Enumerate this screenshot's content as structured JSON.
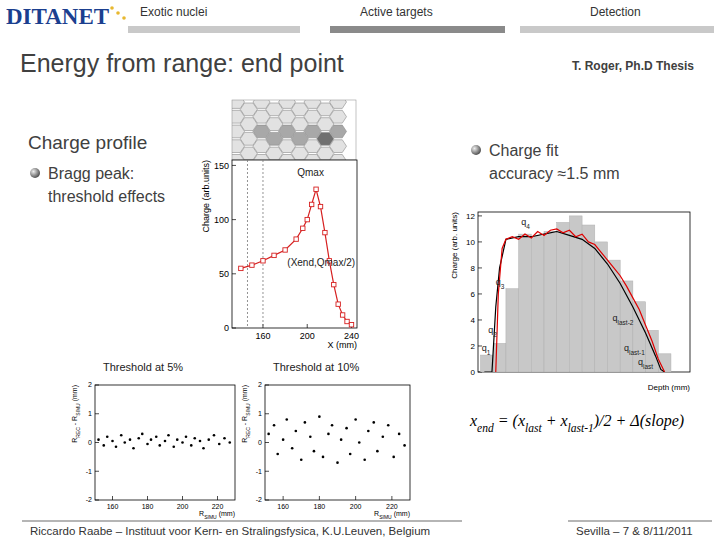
{
  "slide": {
    "logo": "DITANET",
    "nav": [
      "Exotic nuclei",
      "Active targets",
      "Detection"
    ],
    "title": "Energy from range: end point",
    "source": "T. Roger, Ph.D Thesis",
    "left_heading": "Charge profile",
    "left_bullet": [
      "Bragg peak:",
      "threshold effects"
    ],
    "right_bullet": [
      "Charge fit",
      "accuracy ≈1.5 mm"
    ],
    "formula": [
      {
        "text": "x"
      },
      {
        "text": "end",
        "sub": true
      },
      {
        "text": " = (x"
      },
      {
        "text": "last",
        "sub": true
      },
      {
        "text": " + x"
      },
      {
        "text": "last-1",
        "sub": true
      },
      {
        "text": ")/2 + Δ(slope)"
      }
    ],
    "footer_left": "Riccardo Raabe – Instituut voor Kern- en Stralingsfysica, K.U.Leuven, Belgium",
    "footer_right": "Sevilla – 7 & 8/11/2011"
  },
  "chart_data": [
    {
      "type": "line",
      "x": [
        140,
        150,
        160,
        170,
        180,
        190,
        196,
        200,
        204,
        208,
        212,
        216,
        220,
        224,
        228,
        232,
        236,
        240
      ],
      "values": [
        55,
        58,
        62,
        67,
        72,
        82,
        92,
        100,
        114,
        128,
        112,
        88,
        62,
        40,
        22,
        12,
        6,
        3
      ],
      "color": "#d62020",
      "marker": "square",
      "xlim": [
        132,
        245
      ],
      "ylim": [
        0,
        155
      ],
      "xticks": [
        160,
        200,
        240
      ],
      "yticks": [
        0,
        50,
        100,
        150
      ],
      "x_label": "X (mm)",
      "y_label": "Charge (arb.units)",
      "reference_lines": [
        146,
        160
      ],
      "annotations": [
        {
          "label": [
            {
              "text": "Qmax"
            }
          ],
          "x": 191,
          "y": 140
        },
        {
          "label": [
            {
              "text": "(Xend,Qmax/2)"
            }
          ],
          "x": 182,
          "y": 57
        }
      ]
    },
    {
      "type": "scatter",
      "title": "Threshold at 5%",
      "x": [
        152,
        155,
        157,
        160,
        162,
        165,
        167,
        170,
        172,
        175,
        177,
        180,
        182,
        185,
        187,
        190,
        192,
        195,
        197,
        200,
        202,
        205,
        207,
        210,
        212,
        215,
        218,
        221,
        224,
        227
      ],
      "values": [
        0.1,
        -0.1,
        0.2,
        0.05,
        -0.15,
        0.25,
        0,
        0.1,
        -0.2,
        0.15,
        0.3,
        -0.05,
        0.1,
        0.2,
        -0.1,
        0.05,
        0.25,
        -0.15,
        0.1,
        0,
        0.2,
        -0.1,
        0.15,
        0.05,
        -0.2,
        0.1,
        0.25,
        -0.05,
        0.15,
        0
      ],
      "color": "#000000",
      "marker": "circle",
      "xlim": [
        150,
        230
      ],
      "ylim": [
        -2,
        2
      ],
      "xticks": [
        160,
        180,
        200,
        220
      ],
      "yticks": [
        -2,
        -1,
        0,
        1,
        2
      ],
      "x_label": [
        {
          "text": "R"
        },
        {
          "text": "SIMU",
          "sub": true
        },
        {
          "text": " (mm)"
        }
      ],
      "y_label": [
        {
          "text": "R"
        },
        {
          "text": "REC",
          "sub": true
        },
        {
          "text": " - R"
        },
        {
          "text": "SIMU",
          "sub": true
        },
        {
          "text": " (mm)"
        }
      ]
    },
    {
      "type": "scatter",
      "title": "Threshold at 10%",
      "x": [
        152,
        155,
        157,
        160,
        162,
        165,
        167,
        170,
        172,
        175,
        177,
        180,
        182,
        185,
        187,
        190,
        192,
        195,
        197,
        200,
        202,
        205,
        207,
        210,
        212,
        215,
        218,
        221,
        224,
        227
      ],
      "values": [
        0.3,
        0.6,
        -0.4,
        0.1,
        0.8,
        -0.2,
        0.4,
        -0.6,
        0.7,
        0.2,
        -0.3,
        0.9,
        -0.5,
        0.3,
        0.6,
        -0.7,
        0.1,
        0.5,
        -0.4,
        0.8,
        0,
        -0.6,
        0.4,
        0.7,
        -0.3,
        0.2,
        0.6,
        -0.5,
        0.3,
        -0.1
      ],
      "color": "#000000",
      "marker": "circle",
      "xlim": [
        150,
        230
      ],
      "ylim": [
        -2,
        2
      ],
      "xticks": [
        160,
        180,
        200,
        220
      ],
      "yticks": [
        -2,
        -1,
        0,
        1,
        2
      ],
      "x_label": [
        {
          "text": "R"
        },
        {
          "text": "SIMU",
          "sub": true
        },
        {
          "text": " (mm)"
        }
      ],
      "y_label": [
        {
          "text": "R"
        },
        {
          "text": "REC",
          "sub": true
        },
        {
          "text": " - R"
        },
        {
          "text": "SIMU",
          "sub": true
        },
        {
          "text": " (mm)"
        }
      ]
    },
    {
      "type": "histogram",
      "bins": [
        0,
        1,
        2,
        3,
        4,
        5,
        6,
        7,
        8,
        9,
        10,
        11,
        12,
        13,
        14,
        15
      ],
      "counts": [
        1.3,
        2.2,
        6.4,
        10.6,
        10.4,
        10.8,
        11.5,
        12,
        11.3,
        10,
        8.6,
        7,
        5.4,
        3.2,
        1.4
      ],
      "color": "#c8c8c8",
      "series": [
        {
          "type": "line",
          "color": "#000000",
          "x": [
            0.3,
            0.9,
            1.2,
            1.5,
            2,
            3,
            4,
            5,
            6,
            7,
            8,
            9,
            10,
            11,
            12,
            13,
            13.8,
            14.2,
            14.5
          ],
          "values": [
            0,
            0,
            5,
            8,
            10.2,
            10.4,
            10.4,
            10.6,
            10.8,
            10.5,
            10.2,
            9.5,
            8.3,
            6.8,
            5,
            3,
            1.2,
            0.2,
            0
          ]
        },
        {
          "type": "line",
          "color": "#e00000",
          "x": [
            1.2,
            1.4,
            1.7,
            2,
            2.5,
            3,
            3.5,
            4,
            4.5,
            5,
            5.5,
            6,
            6.5,
            7,
            7.5,
            8,
            8.5,
            9,
            9.5,
            10,
            10.5,
            11,
            11.5,
            12,
            12.5,
            13,
            13.5,
            14,
            14.5
          ],
          "values": [
            0,
            6,
            9.5,
            10.2,
            10.4,
            10.2,
            10.6,
            10.3,
            10.8,
            10.5,
            10.9,
            11,
            10.7,
            10.9,
            10.4,
            10.6,
            10,
            9.8,
            9.2,
            8.6,
            8,
            7.4,
            6.6,
            5.7,
            4.8,
            3.6,
            2.4,
            1,
            0
          ]
        }
      ],
      "xlim": [
        -0.2,
        16.5
      ],
      "ylim": [
        0,
        12.3
      ],
      "yticks": [
        0,
        2,
        4,
        6,
        8,
        10,
        12
      ],
      "tick_labels": "y",
      "x_label": "Depth (mm)",
      "y_label": "Charge (arb. units)",
      "annotations": [
        {
          "label": [
            {
              "text": "q"
            },
            {
              "text": "4",
              "sub": true
            }
          ],
          "x": 3.2,
          "y": 11.3
        },
        {
          "label": [
            {
              "text": "q"
            },
            {
              "text": "3",
              "sub": true
            }
          ],
          "x": 1.2,
          "y": 6.7
        },
        {
          "label": [
            {
              "text": "q"
            },
            {
              "text": "2",
              "sub": true
            }
          ],
          "x": 0.6,
          "y": 3.0
        },
        {
          "label": [
            {
              "text": "q"
            },
            {
              "text": "1",
              "sub": true
            }
          ],
          "x": 0.1,
          "y": 1.6
        },
        {
          "label": [
            {
              "text": "q"
            },
            {
              "text": "last-2",
              "sub": true
            }
          ],
          "x": 10.4,
          "y": 3.9
        },
        {
          "label": [
            {
              "text": "q"
            },
            {
              "text": "last-1",
              "sub": true
            }
          ],
          "x": 11.3,
          "y": 1.6
        },
        {
          "label": [
            {
              "text": "q"
            },
            {
              "text": "last",
              "sub": true
            }
          ],
          "x": 12.4,
          "y": 0.5
        }
      ]
    }
  ]
}
